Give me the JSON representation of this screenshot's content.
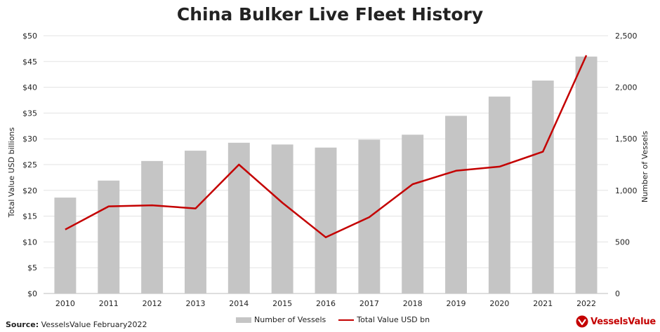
{
  "chart_data": {
    "type": "bar+line",
    "title": "China Bulker Live Fleet History",
    "categories": [
      "2010",
      "2011",
      "2012",
      "2013",
      "2014",
      "2015",
      "2016",
      "2017",
      "2018",
      "2019",
      "2020",
      "2021",
      "2022"
    ],
    "series": [
      {
        "name": "Number of Vessels",
        "type": "bar",
        "axis": "right",
        "values": [
          930,
          1095,
          1285,
          1385,
          1462,
          1445,
          1415,
          1492,
          1540,
          1723,
          1910,
          2065,
          2298
        ]
      },
      {
        "name": "Total Value USD bn",
        "type": "line",
        "axis": "left",
        "values": [
          12.4,
          16.9,
          17.1,
          16.5,
          25.0,
          17.6,
          10.9,
          14.8,
          21.2,
          23.8,
          24.6,
          27.5,
          46.2
        ]
      }
    ],
    "ylabel": "Total Value USD billions",
    "y2label": "Number of Vessels",
    "ylim": [
      0,
      50
    ],
    "y2lim": [
      0,
      2500
    ],
    "yticks": [
      "$0",
      "$5",
      "$10",
      "$15",
      "$20",
      "$25",
      "$30",
      "$35",
      "$40",
      "$45",
      "$50"
    ],
    "y2ticks": [
      "0",
      "500",
      "1,000",
      "1,500",
      "2,000",
      "2,500"
    ],
    "grid": true,
    "legend_position": "bottom",
    "colors": {
      "bars": "#c5c5c5",
      "line": "#c40000"
    }
  },
  "source": {
    "label": "Source:",
    "text": "VesselsValue February2022"
  },
  "logo": {
    "text": "VesselsValue",
    "icon": "vesselsvalue-logo-icon"
  }
}
